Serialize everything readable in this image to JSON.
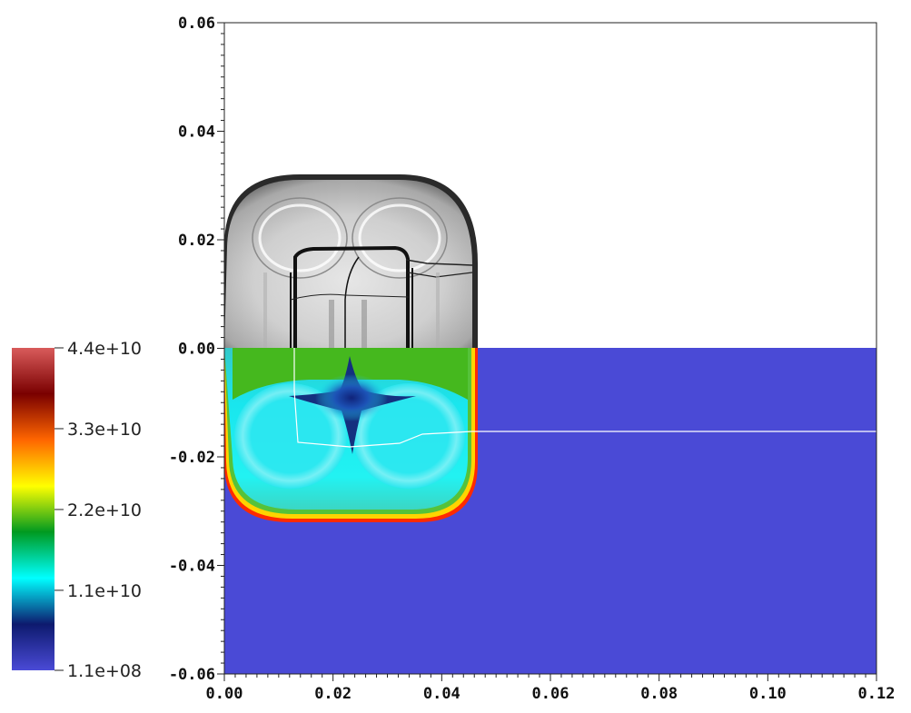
{
  "chart_data": {
    "type": "heatmap",
    "title": "",
    "xlabel": "",
    "ylabel": "",
    "xlim": [
      0.0,
      0.12
    ],
    "ylim": [
      -0.06,
      0.06
    ],
    "x_ticks": [
      {
        "value": 0.0,
        "label": "0.00"
      },
      {
        "value": 0.02,
        "label": "0.02"
      },
      {
        "value": 0.04,
        "label": "0.04"
      },
      {
        "value": 0.06,
        "label": "0.06"
      },
      {
        "value": 0.08,
        "label": "0.08"
      },
      {
        "value": 0.1,
        "label": "0.10"
      },
      {
        "value": 0.12,
        "label": "0.12"
      }
    ],
    "y_ticks": [
      {
        "value": 0.06,
        "label": "0.06"
      },
      {
        "value": 0.04,
        "label": "0.04"
      },
      {
        "value": 0.02,
        "label": "0.02"
      },
      {
        "value": 0.0,
        "label": "0.00"
      },
      {
        "value": -0.02,
        "label": "-0.02"
      },
      {
        "value": -0.04,
        "label": "-0.04"
      },
      {
        "value": -0.06,
        "label": "-0.06"
      }
    ],
    "colorbar": {
      "placement": "left",
      "min": 110000000,
      "max": 44000000000,
      "labels": [
        {
          "value": 44000000000,
          "label": "4.4e+10"
        },
        {
          "value": 33000000000,
          "label": "3.3e+10"
        },
        {
          "value": 22000000000,
          "label": "2.2e+10"
        },
        {
          "value": 11000000000,
          "label": "1.1e+10"
        },
        {
          "value": 110000000,
          "label": "1.1e+08"
        }
      ],
      "colors": [
        "#4a4ad6",
        "#0d1a6e",
        "#00ffff",
        "#009a20",
        "#ffff00",
        "#ff6600",
        "#7a0000",
        "#d95b5b"
      ]
    },
    "regions": {
      "upper_half": "grayscale schlieren",
      "lower_half": "pseudocolor field",
      "background_value": 110000000,
      "background_color": "#4a4ad6"
    }
  }
}
